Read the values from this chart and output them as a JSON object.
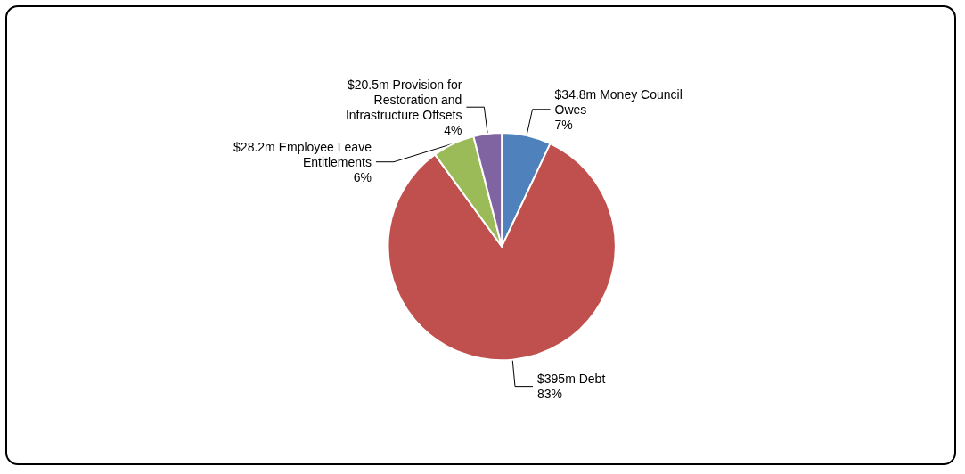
{
  "chart_data": {
    "type": "pie",
    "categories": [
      "$34.8m Money Council Owes",
      "$395m Debt",
      "$28.2m Employee Leave Entitlements",
      "$20.5m Provision for Restoration and Infrastructure Offsets"
    ],
    "values": [
      7,
      83,
      6,
      4
    ],
    "value_labels": [
      "7%",
      "83%",
      "6%",
      "4%"
    ],
    "colors": [
      "#4f81bd",
      "#c0504d",
      "#9bbb59",
      "#8064a2"
    ],
    "legend": false
  }
}
